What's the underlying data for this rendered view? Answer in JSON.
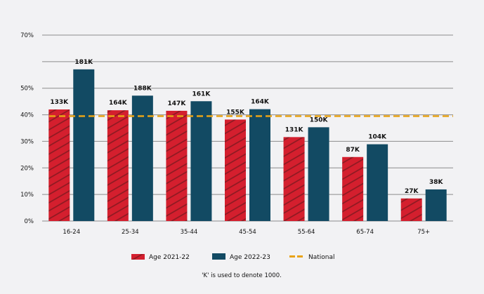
{
  "chart_data": {
    "type": "bar",
    "title": "",
    "xlabel": "",
    "ylabel": "",
    "ylim": [
      0,
      70
    ],
    "yticks": [
      0,
      10,
      20,
      30,
      40,
      50,
      60,
      70
    ],
    "ytick_labels": [
      "0%",
      "10%",
      "20%",
      "30%",
      "40%",
      "50%",
      "",
      "70%"
    ],
    "grid": true,
    "legend_position": "bottom",
    "categories": [
      "16-24",
      "25-34",
      "35-44",
      "45-54",
      "55-64",
      "65-74",
      "75+"
    ],
    "series": [
      {
        "name": "Age 2021-22",
        "values": [
          42,
          41.7,
          41.5,
          38.2,
          31.6,
          24.1,
          8.5
        ],
        "labels": [
          "133K",
          "164K",
          "147K",
          "155K",
          "131K",
          "87K",
          "27K"
        ],
        "color": "#d41f2e",
        "pattern": "hatched"
      },
      {
        "name": "Age 2022-23",
        "values": [
          57.1,
          47.2,
          45.1,
          42.1,
          35.3,
          28.9,
          11.9
        ],
        "labels": [
          "181K",
          "188K",
          "161K",
          "164K",
          "150K",
          "104K",
          "38K"
        ],
        "color": "#124a63"
      }
    ],
    "reference_line": {
      "name": "National",
      "value": 39.5,
      "color": "#e8a317",
      "style": "dashed"
    },
    "footnote": "'K' is used to denote 1000."
  }
}
